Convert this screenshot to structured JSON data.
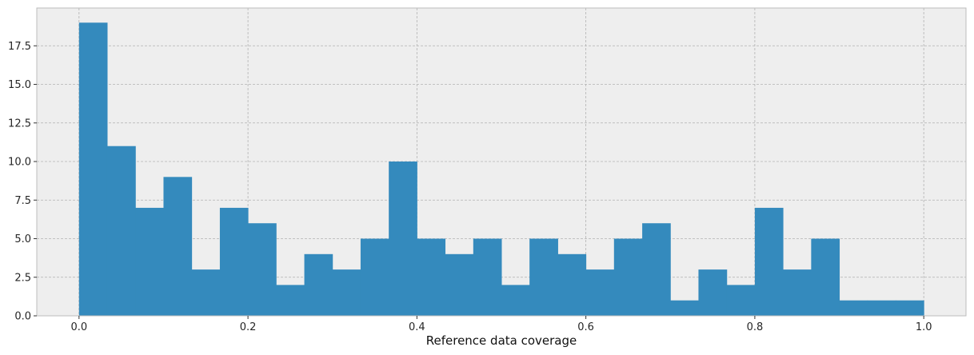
{
  "chart_data": {
    "type": "bar",
    "title": "",
    "xlabel": "Reference data coverage",
    "ylabel": "",
    "xlim": [
      -0.05,
      1.05
    ],
    "ylim": [
      0,
      19.95
    ],
    "grid": true,
    "legend": "none",
    "colors": {
      "plot_bg": "#eeeeee",
      "bar": "#348abd",
      "grid": "#b2b2b2",
      "spine": "#bcbcbc"
    },
    "bin_edges": [
      0.0,
      0.0333,
      0.0667,
      0.1,
      0.1333,
      0.1667,
      0.2,
      0.2333,
      0.2667,
      0.3,
      0.3333,
      0.3667,
      0.4,
      0.4333,
      0.4667,
      0.5,
      0.5333,
      0.5667,
      0.6,
      0.6333,
      0.6667,
      0.7,
      0.7333,
      0.7667,
      0.8,
      0.8333,
      0.8667,
      0.9,
      0.9333,
      0.9667,
      1.0
    ],
    "values": [
      19,
      11,
      7,
      9,
      3,
      7,
      6,
      2,
      4,
      3,
      5,
      10,
      5,
      4,
      5,
      2,
      5,
      4,
      3,
      5,
      6,
      1,
      3,
      2,
      7,
      3,
      5,
      1,
      1,
      1
    ],
    "x_ticks": [
      0.0,
      0.2,
      0.4,
      0.6,
      0.8,
      1.0
    ],
    "x_tick_labels": [
      "0.0",
      "0.2",
      "0.4",
      "0.6",
      "0.8",
      "1.0"
    ],
    "y_ticks": [
      0.0,
      2.5,
      5.0,
      7.5,
      10.0,
      12.5,
      15.0,
      17.5
    ],
    "y_tick_labels": [
      "0.0",
      "2.5",
      "5.0",
      "7.5",
      "10.0",
      "12.5",
      "15.0",
      "17.5"
    ]
  }
}
